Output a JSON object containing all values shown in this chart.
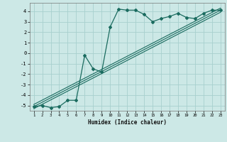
{
  "xlabel": "Humidex (Indice chaleur)",
  "background_color": "#cce8e6",
  "grid_color": "#a8d0ce",
  "line_color": "#1a6b5f",
  "xlim": [
    0.5,
    23.5
  ],
  "ylim": [
    -5.5,
    4.8
  ],
  "xticks": [
    1,
    2,
    3,
    4,
    5,
    6,
    7,
    8,
    9,
    10,
    11,
    12,
    13,
    14,
    15,
    16,
    17,
    18,
    19,
    20,
    21,
    22,
    23
  ],
  "yticks": [
    -5,
    -4,
    -3,
    -2,
    -1,
    0,
    1,
    2,
    3,
    4
  ],
  "main_x": [
    1,
    2,
    3,
    4,
    5,
    6,
    7,
    8,
    9,
    10,
    11,
    12,
    13,
    14,
    15,
    16,
    17,
    18,
    19,
    20,
    21,
    22,
    23
  ],
  "main_y": [
    -5.1,
    -5.0,
    -5.2,
    -5.1,
    -4.5,
    -4.5,
    -0.2,
    -1.5,
    -1.8,
    2.5,
    4.2,
    4.1,
    4.1,
    3.7,
    3.0,
    3.3,
    3.5,
    3.8,
    3.4,
    3.3,
    3.8,
    4.1,
    4.1
  ],
  "line1_x": [
    1,
    23
  ],
  "line1_y": [
    -5.1,
    4.1
  ],
  "line2_x": [
    1,
    23
  ],
  "line2_y": [
    -5.3,
    3.9
  ],
  "line3_x": [
    1,
    23
  ],
  "line3_y": [
    -4.9,
    4.3
  ]
}
